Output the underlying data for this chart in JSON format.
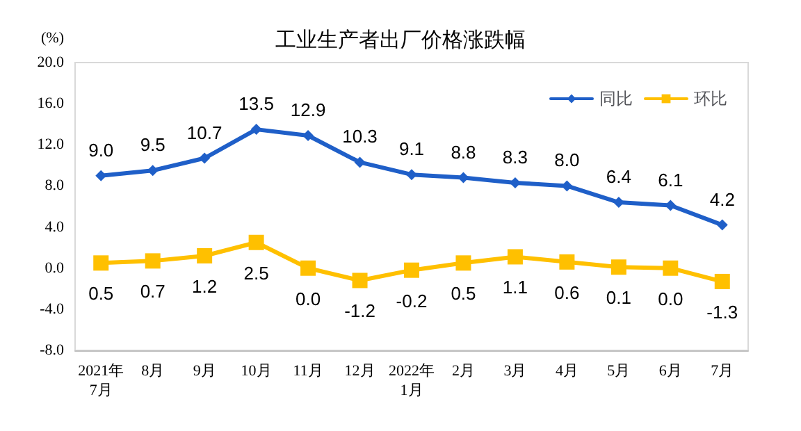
{
  "chart_data": {
    "type": "line",
    "title": "工业生产者出厂价格涨跌幅",
    "ylabel": "(%)",
    "categories": [
      "2021年\n7月",
      "8月",
      "9月",
      "10月",
      "11月",
      "12月",
      "2022年\n1月",
      "2月",
      "3月",
      "4月",
      "5月",
      "6月",
      "7月"
    ],
    "series": [
      {
        "name": "同比",
        "color": "#1f5fc8",
        "marker": "diamond",
        "values": [
          9.0,
          9.5,
          10.7,
          13.5,
          12.9,
          10.3,
          9.1,
          8.8,
          8.3,
          8.0,
          6.4,
          6.1,
          4.2
        ],
        "value_labels": [
          "9.0",
          "9.5",
          "10.7",
          "13.5",
          "12.9",
          "10.3",
          "9.1",
          "8.8",
          "8.3",
          "8.0",
          "6.4",
          "6.1",
          "4.2"
        ]
      },
      {
        "name": "环比",
        "color": "#ffc000",
        "marker": "square",
        "values": [
          0.5,
          0.7,
          1.2,
          2.5,
          0.0,
          -1.2,
          -0.2,
          0.5,
          1.1,
          0.6,
          0.1,
          0.0,
          -1.3
        ],
        "value_labels": [
          "0.5",
          "0.7",
          "1.2",
          "2.5",
          "0.0",
          "-1.2",
          "-0.2",
          "0.5",
          "1.1",
          "0.6",
          "0.1",
          "0.0",
          "-1.3"
        ]
      }
    ],
    "ylim": [
      -8,
      20
    ],
    "yticks": [
      {
        "value": -8,
        "label": "-8.0"
      },
      {
        "value": -4,
        "label": "-4.0"
      },
      {
        "value": 0,
        "label": "0.0"
      },
      {
        "value": 4,
        "label": "4.0"
      },
      {
        "value": 8,
        "label": "8.0"
      },
      {
        "value": 12,
        "label": "12.0"
      },
      {
        "value": 16,
        "label": "16.0"
      },
      {
        "value": 20,
        "label": "20.0"
      }
    ],
    "legend": "top right",
    "line_style": "solid"
  }
}
